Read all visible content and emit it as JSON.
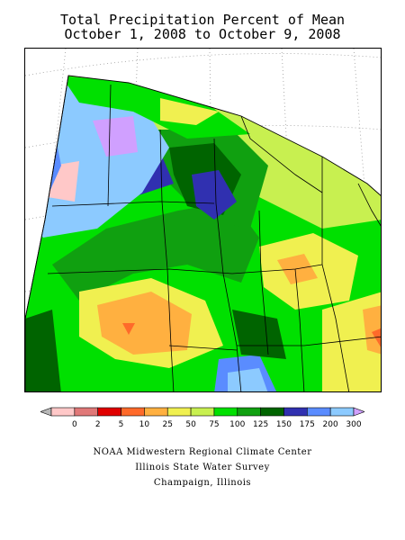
{
  "header": {
    "title_line1": "Total Precipitation Percent of Mean",
    "title_line2": "October 1, 2008 to October 9, 2008"
  },
  "legend": {
    "labels": [
      "0",
      "2",
      "5",
      "10",
      "25",
      "50",
      "75",
      "100",
      "125",
      "150",
      "175",
      "200",
      "300"
    ],
    "colors": [
      "#b8b8b8",
      "#ffc8c8",
      "#e07878",
      "#e00000",
      "#ff6a2a",
      "#ffb040",
      "#f0f050",
      "#c8f050",
      "#00e000",
      "#10a010",
      "#006400",
      "#3030b0",
      "#5a8cff",
      "#8ccaff",
      "#d0a0ff"
    ]
  },
  "colors": {
    "ocean_land_bg": "#ffffff",
    "border": "#000000",
    "state_lines": "#000000",
    "graticule": "#888888"
  },
  "credits": {
    "line1": "NOAA Midwestern Regional Climate Center",
    "line2": "Illinois State Water Survey",
    "line3": "Champaign, Illinois"
  }
}
